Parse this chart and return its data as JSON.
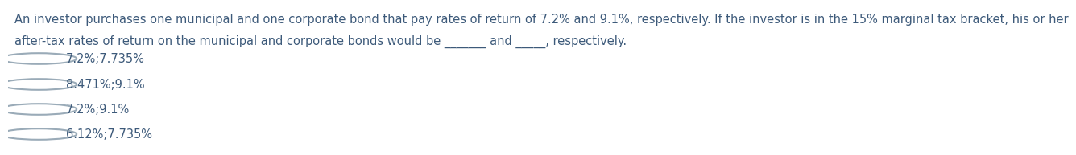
{
  "question_line1": "An investor purchases one municipal and one corporate bond that pay rates of return of 7.2% and 9.1%, respectively. If the investor is in the 15% marginal tax bracket, his or her",
  "question_line2": "after-tax rates of return on the municipal and corporate bonds would be _______ and _____, respectively.",
  "options": [
    "7.2%;7.735%",
    "8.471%;9.1%",
    "7.2%;9.1%",
    "6.12%;7.735%"
  ],
  "text_color": "#3d5a7a",
  "bg_color": "#ffffff",
  "font_size": 10.5,
  "option_font_size": 10.5,
  "fig_width": 12.0,
  "fig_height": 1.73
}
